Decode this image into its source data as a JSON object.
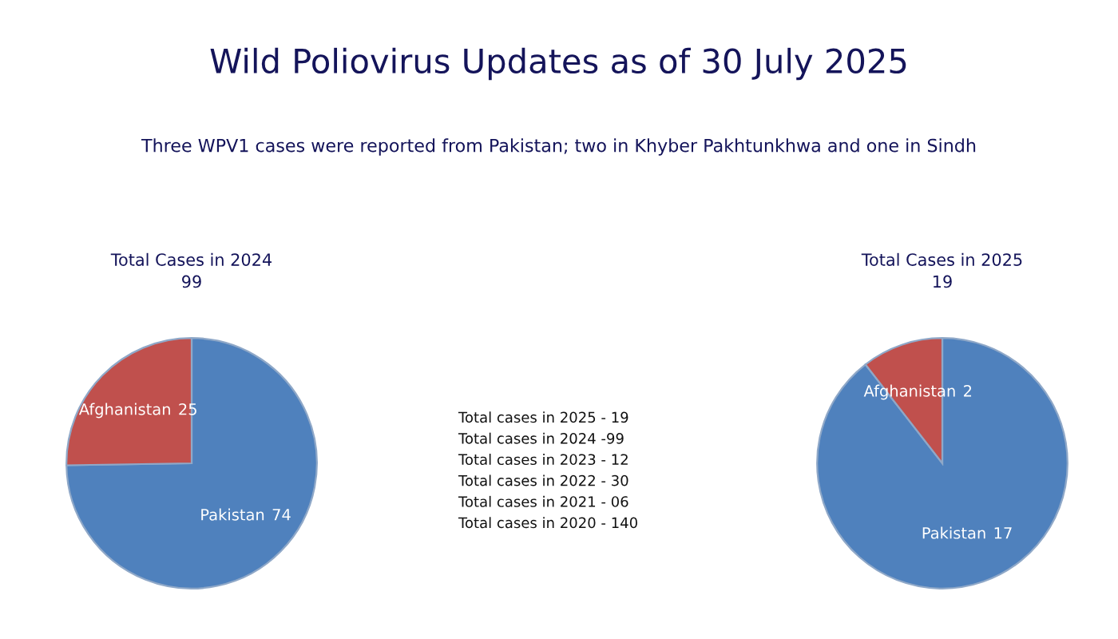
{
  "chart_data": [
    {
      "type": "pie",
      "title": "Total Cases in 2024",
      "subtitle": "99",
      "categories": [
        "Pakistan",
        "Afghanistan"
      ],
      "values": [
        74,
        25
      ],
      "data_labels": true,
      "colors": [
        "#4f81bd",
        "#c0504d"
      ]
    },
    {
      "type": "other",
      "title": "Wild Poliovirus Updates as of 30 July 2025",
      "subtitle": "Three WPV1 cases were reported from Pakistan; two in Khyber Pakhtunkhwa and one in Sindh",
      "annotations": [
        "Total cases in 2025 - 19",
        "Total cases in 2024 -99",
        "Total cases in 2023 - 12",
        "Total cases in 2022 - 30",
        "Total cases in 2021 - 06",
        "Total cases in 2020 - 140"
      ]
    },
    {
      "type": "pie",
      "title": "Total Cases in 2025",
      "subtitle": "19",
      "categories": [
        "Pakistan",
        "Afghanistan"
      ],
      "values": [
        17,
        2
      ],
      "data_labels": true,
      "colors": [
        "#4f81bd",
        "#c0504d"
      ]
    }
  ]
}
